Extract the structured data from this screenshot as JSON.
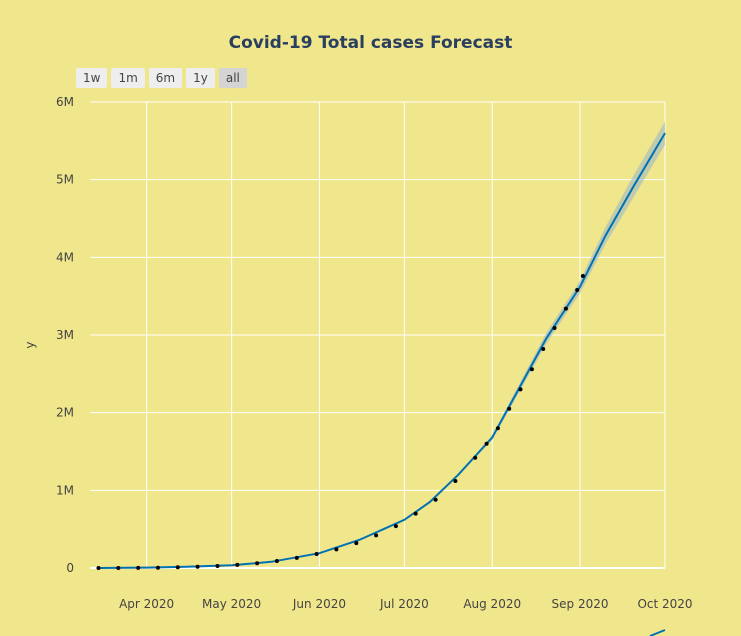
{
  "title": "Covid-19 Total cases Forecast",
  "range_buttons": [
    "1w",
    "1m",
    "6m",
    "1y",
    "all"
  ],
  "active_range": "all",
  "colors": {
    "background": "#f0e68c",
    "grid": "#ffffff",
    "forecast_line": "#0072b2",
    "uncertainty_band": "#9fb9c4",
    "actual_points": "#000000"
  },
  "chart_data": {
    "type": "line",
    "title": "Covid-19 Total cases Forecast",
    "xlabel": "",
    "ylabel": "y",
    "ylim": [
      0,
      6000000
    ],
    "xlim": [
      "2020-03-12",
      "2020-10-01"
    ],
    "grid": true,
    "y_ticks": [
      0,
      1000000,
      2000000,
      3000000,
      4000000,
      5000000,
      6000000
    ],
    "y_tick_labels": [
      "0",
      "1M",
      "2M",
      "3M",
      "4M",
      "5M",
      "6M"
    ],
    "x_ticks": [
      "2020-04-01",
      "2020-05-01",
      "2020-06-01",
      "2020-07-01",
      "2020-08-01",
      "2020-09-01",
      "2020-10-01"
    ],
    "x_tick_labels": [
      "Apr 2020",
      "May 2020",
      "Jun 2020",
      "Jul 2020",
      "Aug 2020",
      "Sep 2020",
      "Oct 2020"
    ],
    "series": [
      {
        "kind": "forecast",
        "x": [
          "2020-03-15",
          "2020-04-01",
          "2020-04-15",
          "2020-05-01",
          "2020-05-15",
          "2020-06-01",
          "2020-06-15",
          "2020-07-01",
          "2020-07-10",
          "2020-07-20",
          "2020-08-01",
          "2020-08-10",
          "2020-08-20",
          "2020-09-01",
          "2020-09-10",
          "2020-09-20",
          "2020-10-01"
        ],
        "y": [
          0,
          5000,
          15000,
          35000,
          80000,
          190000,
          360000,
          620000,
          850000,
          1200000,
          1680000,
          2280000,
          2950000,
          3620000,
          4280000,
          4920000,
          5600000
        ],
        "y_lower": [
          0,
          5000,
          15000,
          35000,
          80000,
          190000,
          360000,
          620000,
          850000,
          1200000,
          1650000,
          2230000,
          2880000,
          3540000,
          4170000,
          4780000,
          5450000
        ],
        "y_upper": [
          0,
          5000,
          15000,
          35000,
          80000,
          190000,
          360000,
          620000,
          850000,
          1200000,
          1710000,
          2330000,
          3020000,
          3700000,
          4390000,
          5060000,
          5750000
        ]
      },
      {
        "kind": "actual",
        "x": [
          "2020-03-15",
          "2020-03-22",
          "2020-03-29",
          "2020-04-05",
          "2020-04-12",
          "2020-04-19",
          "2020-04-26",
          "2020-05-03",
          "2020-05-10",
          "2020-05-17",
          "2020-05-24",
          "2020-05-31",
          "2020-06-07",
          "2020-06-14",
          "2020-06-21",
          "2020-06-28",
          "2020-07-05",
          "2020-07-12",
          "2020-07-19",
          "2020-07-26",
          "2020-07-30",
          "2020-08-03",
          "2020-08-07",
          "2020-08-11",
          "2020-08-15",
          "2020-08-19",
          "2020-08-23",
          "2020-08-27",
          "2020-08-31",
          "2020-09-02"
        ],
        "y": [
          100,
          400,
          1200,
          4000,
          9000,
          16000,
          26000,
          40000,
          60000,
          90000,
          130000,
          180000,
          240000,
          320000,
          420000,
          540000,
          700000,
          880000,
          1120000,
          1420000,
          1600000,
          1800000,
          2050000,
          2300000,
          2560000,
          2820000,
          3090000,
          3340000,
          3580000,
          3760000
        ]
      }
    ]
  }
}
